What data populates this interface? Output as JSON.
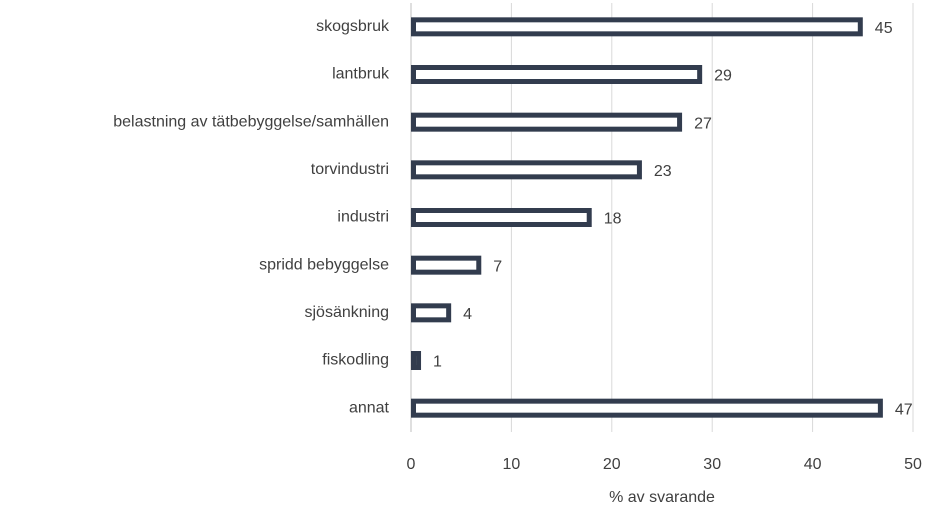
{
  "chart_data": {
    "type": "bar",
    "horizontal": true,
    "x_label": "% av svarande",
    "categories": [
      "skogsbruk",
      "lantbruk",
      "belastning av tätbebyggelse/samhällen",
      "torvindustri",
      "industri",
      "spridd bebyggelse",
      "sjösänkning",
      "fiskodling",
      "annat"
    ],
    "values": [
      45,
      29,
      27,
      23,
      18,
      7,
      4,
      1,
      47
    ],
    "color": "#323c4e",
    "fill": "#ffffff",
    "xlim": [
      0,
      50
    ],
    "xticks": [
      0,
      10,
      20,
      30,
      40,
      50
    ],
    "grid": true
  }
}
